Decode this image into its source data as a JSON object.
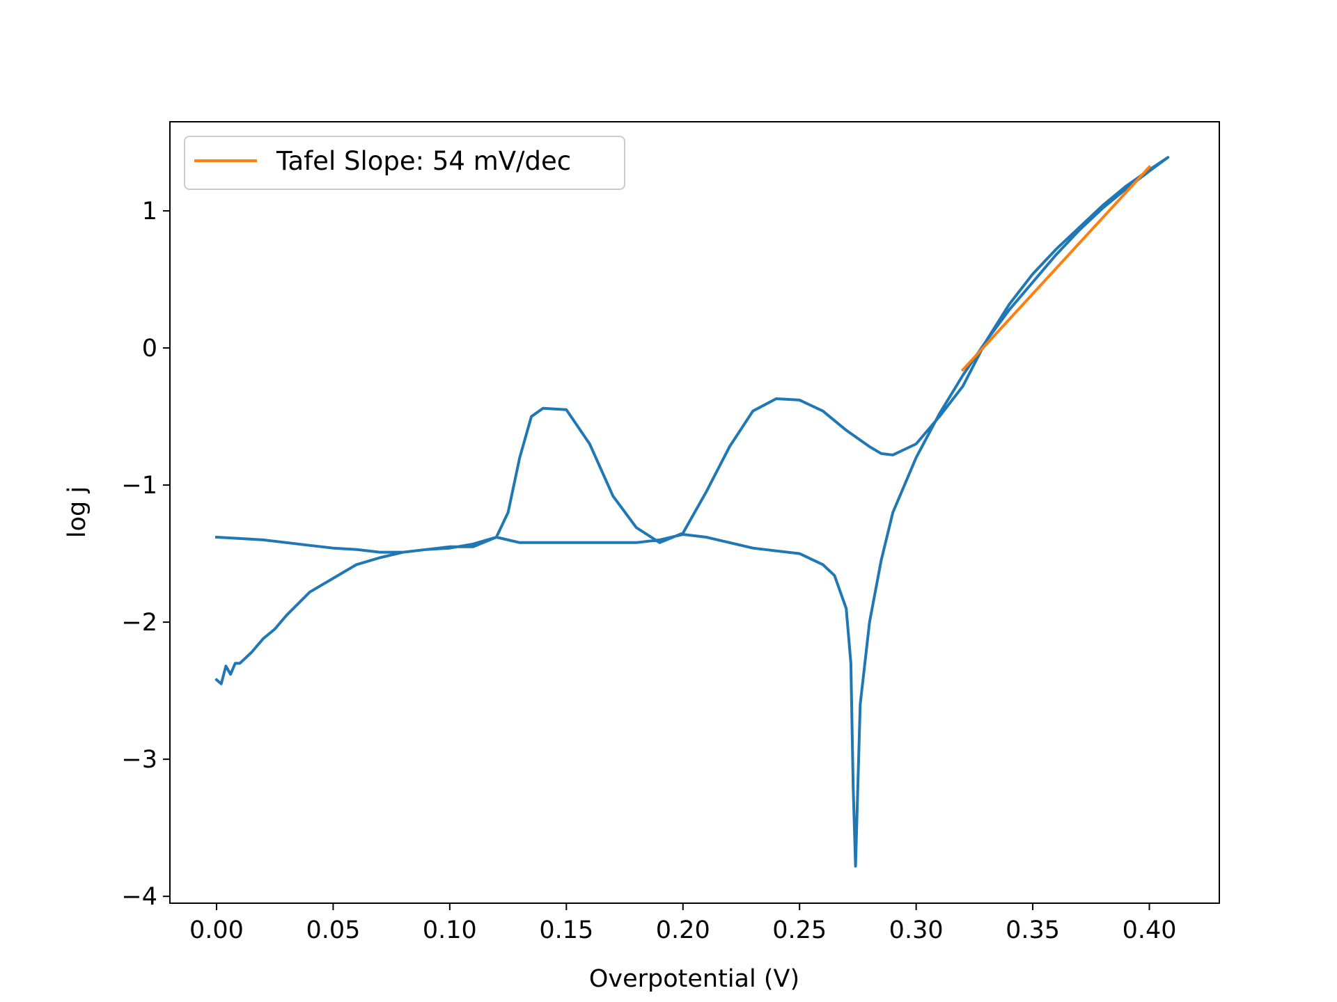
{
  "chart_data": {
    "type": "line",
    "xlabel": "Overpotential (V)",
    "ylabel": "log j",
    "xlim": [
      -0.02,
      0.43
    ],
    "ylim": [
      -4.05,
      1.65
    ],
    "xticks": [
      {
        "value": 0.0,
        "label": "0.00"
      },
      {
        "value": 0.05,
        "label": "0.05"
      },
      {
        "value": 0.1,
        "label": "0.10"
      },
      {
        "value": 0.15,
        "label": "0.15"
      },
      {
        "value": 0.2,
        "label": "0.20"
      },
      {
        "value": 0.25,
        "label": "0.25"
      },
      {
        "value": 0.3,
        "label": "0.30"
      },
      {
        "value": 0.35,
        "label": "0.35"
      },
      {
        "value": 0.4,
        "label": "0.40"
      }
    ],
    "yticks": [
      {
        "value": 1,
        "label": "1"
      },
      {
        "value": 0,
        "label": "0"
      },
      {
        "value": -1,
        "label": "−1"
      },
      {
        "value": -2,
        "label": "−2"
      },
      {
        "value": -3,
        "label": "−3"
      },
      {
        "value": -4,
        "label": "−4"
      }
    ],
    "grid": false,
    "legend_position": "upper-left",
    "series": [
      {
        "color": "#1f77b4",
        "x": [
          0.0,
          0.002,
          0.004,
          0.006,
          0.008,
          0.01,
          0.015,
          0.02,
          0.025,
          0.03,
          0.04,
          0.05,
          0.06,
          0.07,
          0.08,
          0.09,
          0.1,
          0.11,
          0.12,
          0.13,
          0.14,
          0.15,
          0.16,
          0.17,
          0.18,
          0.19,
          0.2,
          0.21,
          0.22,
          0.23,
          0.24,
          0.25,
          0.26,
          0.265,
          0.27,
          0.272,
          0.273,
          0.274,
          0.276,
          0.28,
          0.285,
          0.29,
          0.3,
          0.31,
          0.32,
          0.33,
          0.34,
          0.35,
          0.36,
          0.37,
          0.38,
          0.39,
          0.4,
          0.408,
          0.4,
          0.39,
          0.38,
          0.37,
          0.36,
          0.35,
          0.34,
          0.33,
          0.32,
          0.31,
          0.3,
          0.29,
          0.285,
          0.28,
          0.27,
          0.26,
          0.25,
          0.24,
          0.23,
          0.22,
          0.21,
          0.2,
          0.19,
          0.18,
          0.17,
          0.16,
          0.15,
          0.14,
          0.135,
          0.13,
          0.125,
          0.12,
          0.11,
          0.1,
          0.09,
          0.08,
          0.07,
          0.06,
          0.05,
          0.04,
          0.03,
          0.02,
          0.01,
          0.0
        ],
        "y": [
          -2.42,
          -2.45,
          -2.32,
          -2.38,
          -2.3,
          -2.3,
          -2.22,
          -2.12,
          -2.05,
          -1.95,
          -1.78,
          -1.68,
          -1.58,
          -1.53,
          -1.49,
          -1.47,
          -1.46,
          -1.43,
          -1.38,
          -1.42,
          -1.42,
          -1.42,
          -1.42,
          -1.42,
          -1.42,
          -1.4,
          -1.36,
          -1.38,
          -1.42,
          -1.46,
          -1.48,
          -1.5,
          -1.58,
          -1.66,
          -1.9,
          -2.3,
          -3.2,
          -3.78,
          -2.6,
          -2.0,
          -1.55,
          -1.2,
          -0.8,
          -0.48,
          -0.2,
          0.05,
          0.28,
          0.48,
          0.68,
          0.86,
          1.02,
          1.16,
          1.29,
          1.39,
          1.3,
          1.18,
          1.04,
          0.88,
          0.72,
          0.54,
          0.32,
          0.05,
          -0.28,
          -0.5,
          -0.7,
          -0.78,
          -0.77,
          -0.72,
          -0.6,
          -0.46,
          -0.38,
          -0.37,
          -0.46,
          -0.72,
          -1.05,
          -1.35,
          -1.42,
          -1.31,
          -1.08,
          -0.7,
          -0.45,
          -0.44,
          -0.5,
          -0.8,
          -1.2,
          -1.38,
          -1.45,
          -1.45,
          -1.47,
          -1.49,
          -1.49,
          -1.47,
          -1.46,
          -1.44,
          -1.42,
          -1.4,
          -1.39,
          -1.38
        ]
      },
      {
        "name": "Tafel Slope: 54 mV/dec",
        "color": "#ff7f0e",
        "x": [
          0.32,
          0.4
        ],
        "y": [
          -0.16,
          1.32
        ]
      }
    ]
  }
}
